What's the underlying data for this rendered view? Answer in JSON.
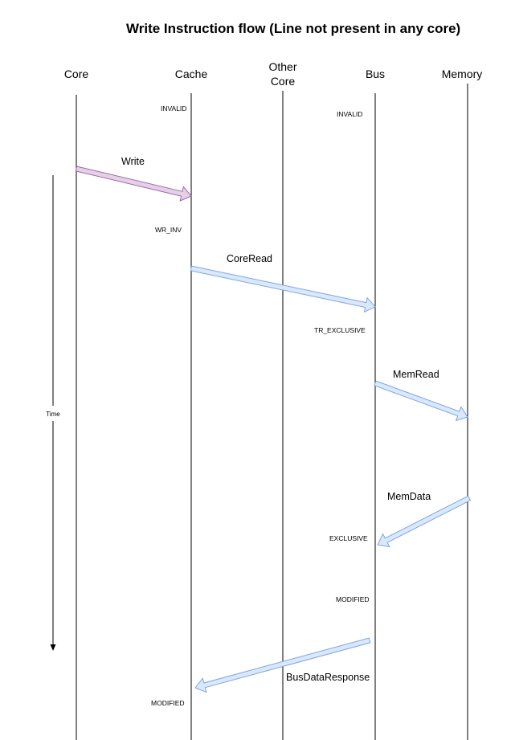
{
  "title": "Write Instruction flow (Line not present in any core)",
  "participants": {
    "core": "Core",
    "cache": "Cache",
    "other_core_line1": "Other",
    "other_core_line2": "Core",
    "bus": "Bus",
    "memory": "Memory"
  },
  "time_label": "Time",
  "states": {
    "cache_initial": "INVALID",
    "bus_initial": "INVALID",
    "cache_after_write": "WR_INV",
    "bus_after_coreread": "TR_EXCLUSIVE",
    "bus_after_memdata": "EXCLUSIVE",
    "bus_modified": "MODIFIED",
    "cache_final": "MODIFIED"
  },
  "messages": {
    "write": "Write",
    "core_read": "CoreRead",
    "mem_read": "MemRead",
    "mem_data": "MemData",
    "bus_data_response": "BusDataResponse"
  },
  "colors": {
    "write_arrow_fill": "#e6d0e8",
    "write_arrow_stroke": "#9d6aa8",
    "blue_arrow_fill": "#d9e8fb",
    "blue_arrow_stroke": "#7ea6e0"
  }
}
